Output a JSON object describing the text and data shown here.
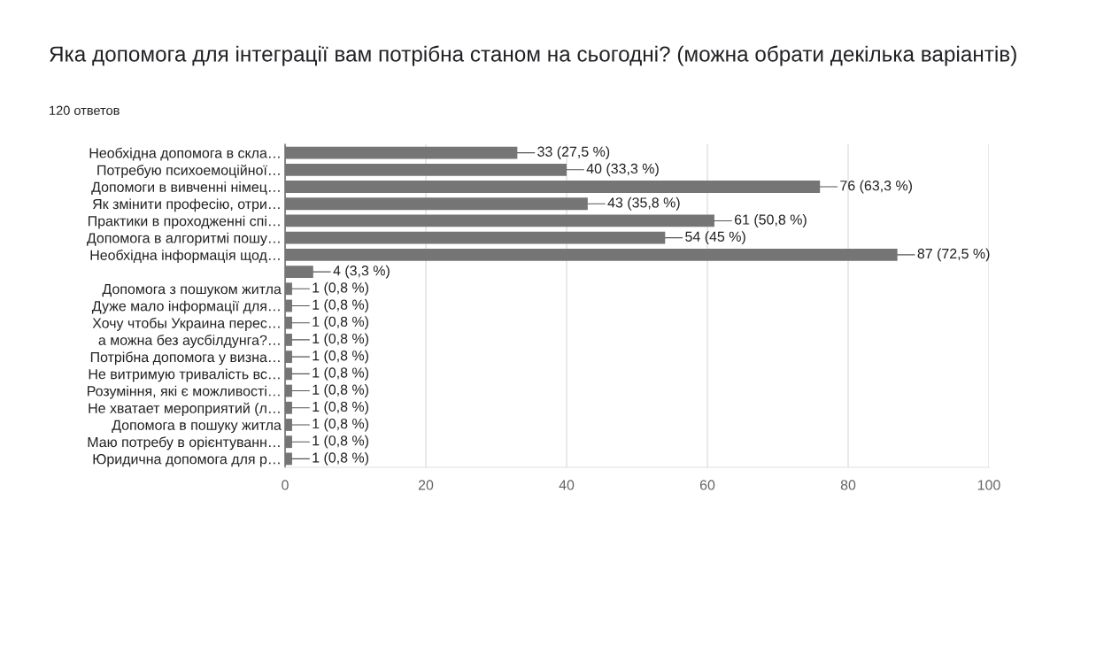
{
  "chart_data": {
    "type": "bar",
    "orientation": "horizontal",
    "title": "Яка допомога для інтеграції вам потрібна станом на сьогодні? (можна обрати декілька варіантів)",
    "subtitle": "120 ответов",
    "categories": [
      "Необхідна допомога в скла…",
      "Потребую психоемоційної…",
      "Допомоги в вивченні німец…",
      "Як змінити професію, отри…",
      "Практики в проходженні спі…",
      "Допомога в алгоритмі пошу…",
      "Необхідна інформація щод…",
      null,
      "Допомога з пошуком житла",
      "Дуже мало інформації для…",
      "Хочу чтобы Украина перес…",
      "а можна без аусбілдунга?…",
      "Потрібна допомога у визна…",
      "Не витримую тривалість вс…",
      "Розуміння, які є можливості…",
      "Не хватает мероприятий (л…",
      "Допомога в пошуку житла",
      "Маю потребу в орієнтуванн…",
      "Юридична допомога для р…"
    ],
    "values": [
      33,
      40,
      76,
      43,
      61,
      54,
      87,
      4,
      1,
      1,
      1,
      1,
      1,
      1,
      1,
      1,
      1,
      1,
      1
    ],
    "value_labels": [
      "33 (27,5 %)",
      "40 (33,3 %)",
      "76 (63,3 %)",
      "43 (35,8 %)",
      "61 (50,8 %)",
      "54 (45 %)",
      "87 (72,5 %)",
      "4 (3,3 %)",
      "1 (0,8 %)",
      "1 (0,8 %)",
      "1 (0,8 %)",
      "1 (0,8 %)",
      "1 (0,8 %)",
      "1 (0,8 %)",
      "1 (0,8 %)",
      "1 (0,8 %)",
      "1 (0,8 %)",
      "1 (0,8 %)",
      "1 (0,8 %)"
    ],
    "color": "#757575",
    "xlim": [
      0,
      100
    ],
    "xticks": [
      0,
      20,
      40,
      60,
      80,
      100
    ],
    "grid": "x"
  }
}
